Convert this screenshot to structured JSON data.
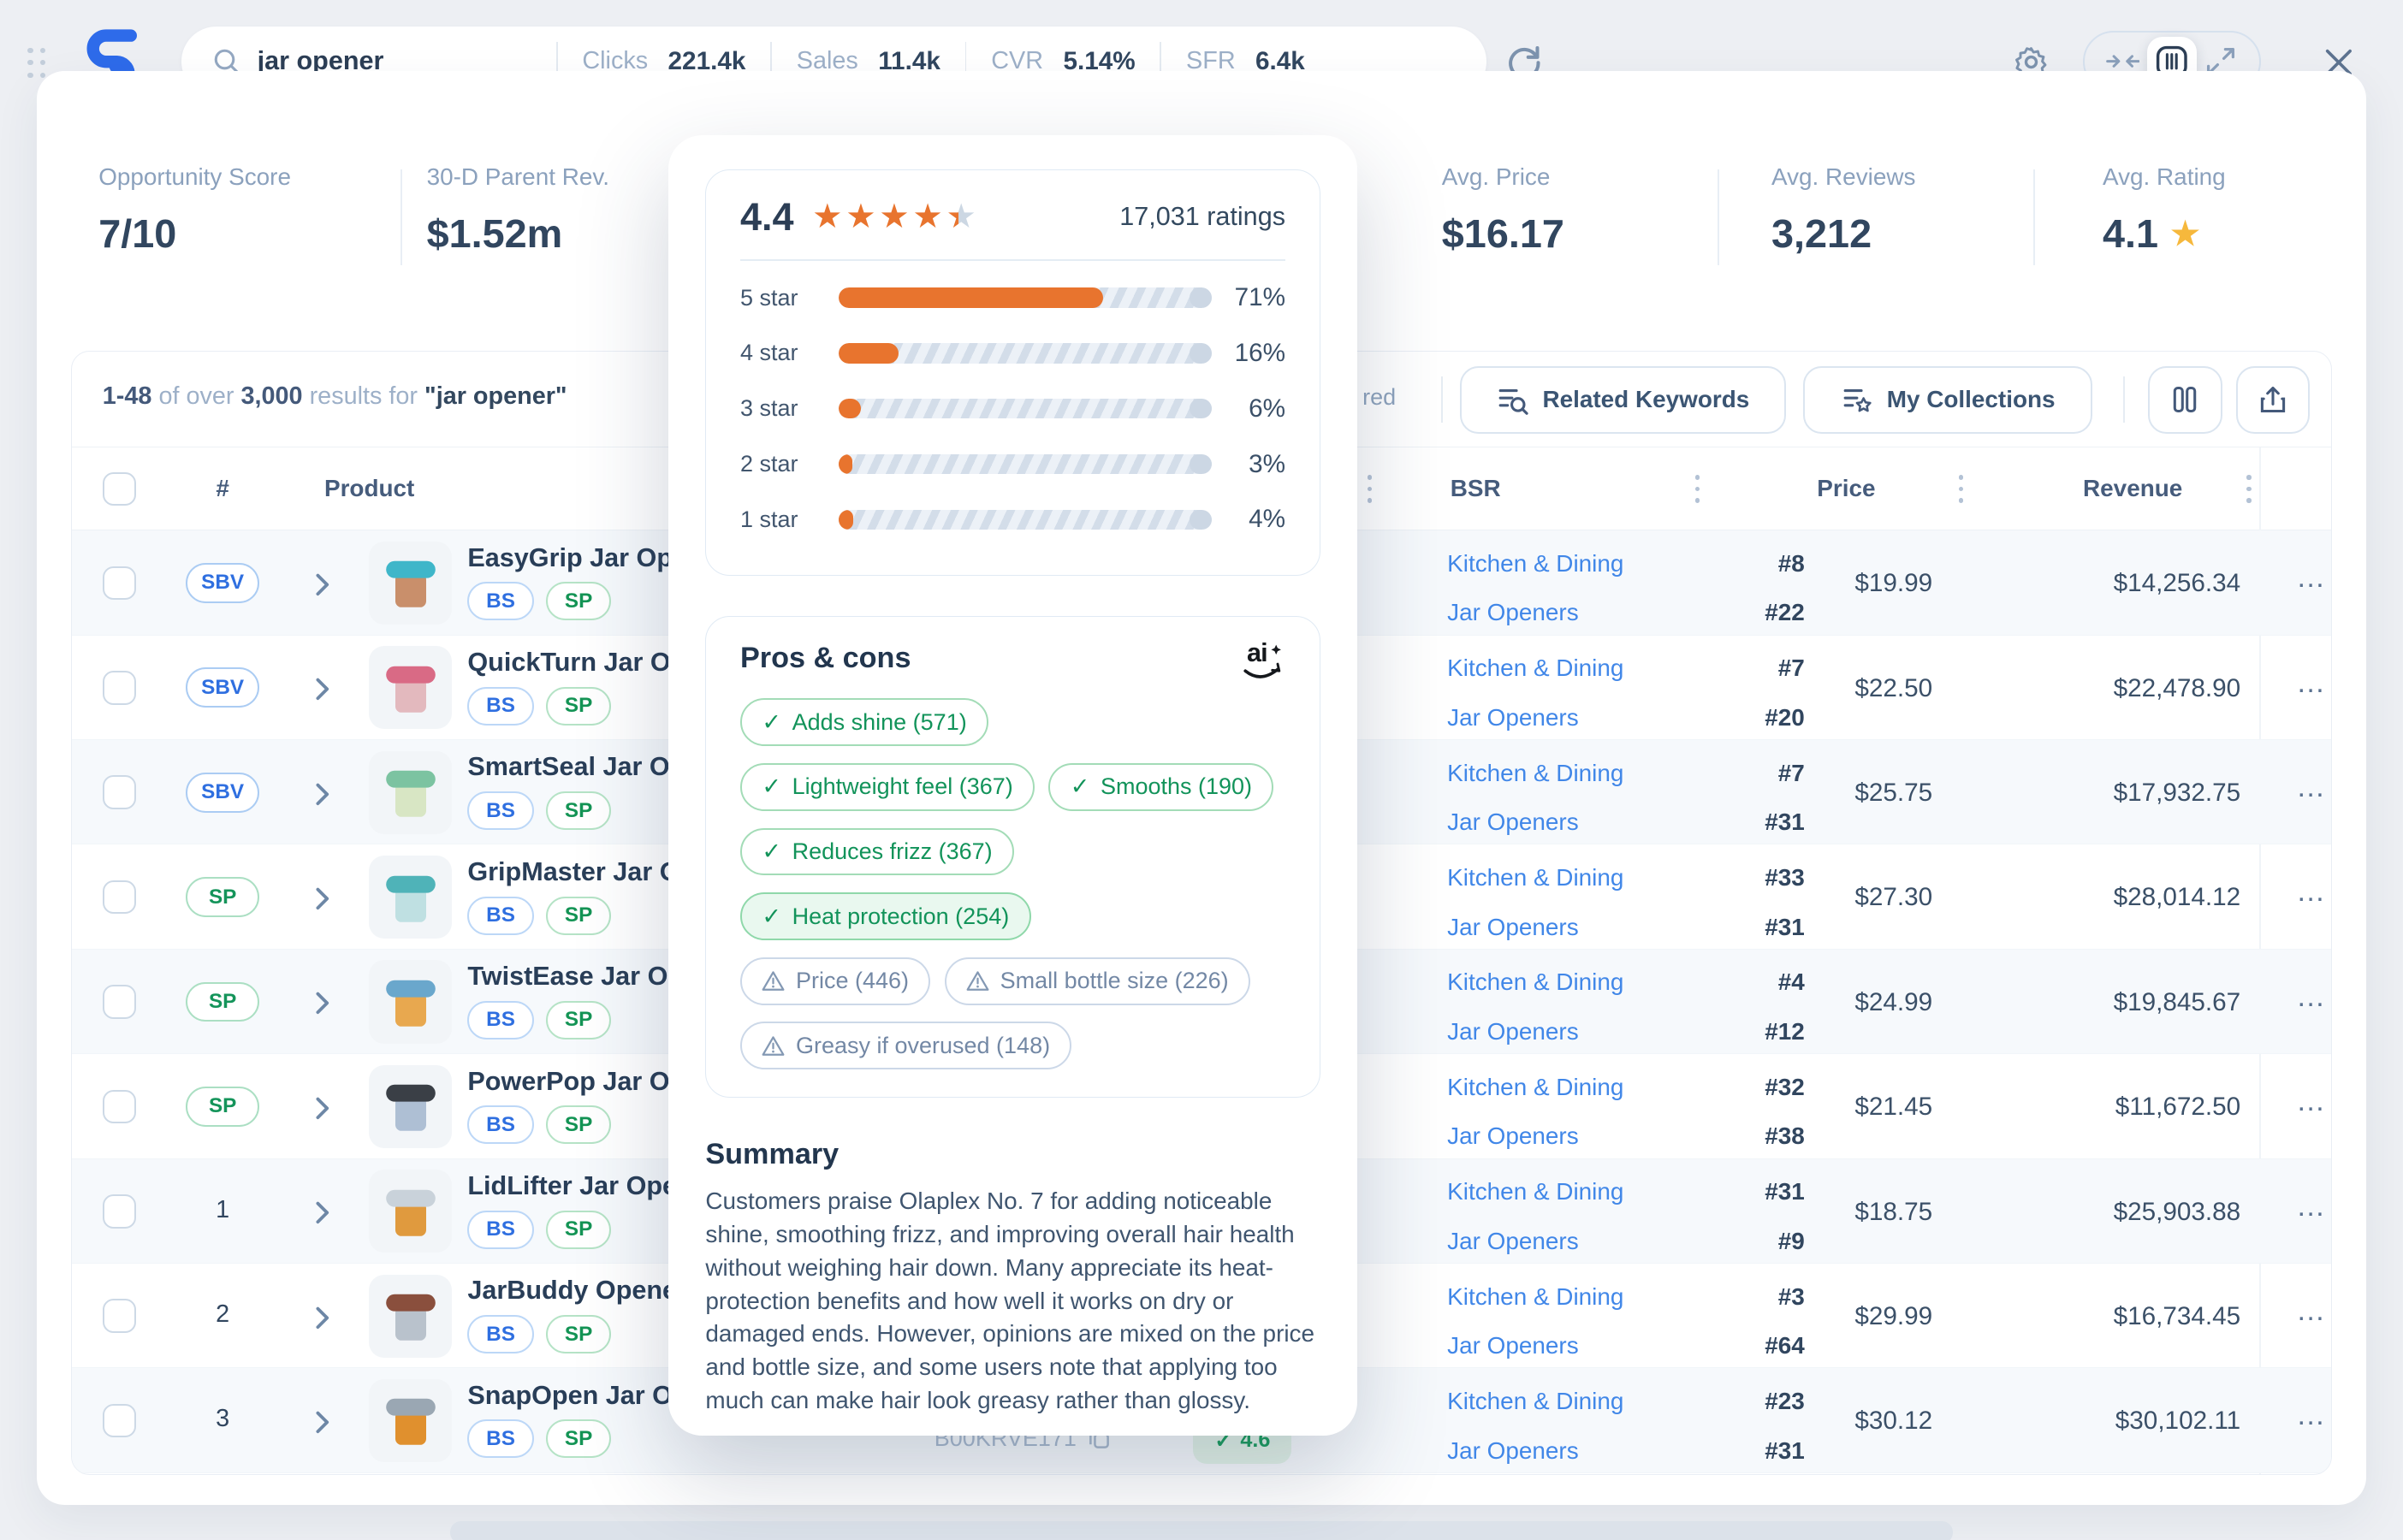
{
  "icons": {
    "star": "★",
    "check": "✓",
    "row_menu": "…"
  },
  "topbar": {
    "search": {
      "value": "jar opener"
    },
    "stats": [
      {
        "label": "Clicks",
        "value": "221.4k"
      },
      {
        "label": "Sales",
        "value": "11.4k"
      },
      {
        "label": "CVR",
        "value": "5.14%"
      },
      {
        "label": "SFR",
        "value": "6.4k"
      }
    ]
  },
  "kpis": [
    {
      "label": "Opportunity Score",
      "value": "7/10"
    },
    {
      "label": "30-D Parent Rev.",
      "value": "$1.52m"
    },
    {
      "label": "Avg. Price",
      "value": "$16.17"
    },
    {
      "label": "Avg. Reviews",
      "value": "3,212"
    },
    {
      "label": "Avg. Rating",
      "value": "4.1"
    }
  ],
  "results_header": {
    "range": "1-48",
    "of": "of over",
    "total": "3,000",
    "for": "results for",
    "query": "\"jar opener\"",
    "partial_label": "red",
    "related_keywords": "Related Keywords",
    "my_collections": "My Collections"
  },
  "table": {
    "headers": {
      "num": "#",
      "product": "Product",
      "bsr": "BSR",
      "price": "Price",
      "revenue": "Revenue"
    },
    "tag_bs": "BS",
    "tag_sp": "SP",
    "rows": [
      {
        "badge": "SBV",
        "title": "EasyGrip Jar Opener",
        "cat1": "Kitchen & Dining",
        "rank1": "#8",
        "cat2": "Jar Openers",
        "rank2": "#22",
        "price": "$19.99",
        "revenue": "$14,256.34",
        "thumb": {
          "lid": "#3fb6c9",
          "body": "#c98f6b"
        }
      },
      {
        "badge": "SBV",
        "title": "QuickTurn Jar Opener",
        "cat1": "Kitchen & Dining",
        "rank1": "#7",
        "cat2": "Jar Openers",
        "rank2": "#20",
        "price": "$22.50",
        "revenue": "$22,478.90",
        "thumb": {
          "lid": "#d96a85",
          "body": "#e3b9be"
        }
      },
      {
        "badge": "SBV",
        "title": "SmartSeal Jar Opener",
        "cat1": "Kitchen & Dining",
        "rank1": "#7",
        "cat2": "Jar Openers",
        "rank2": "#31",
        "price": "$25.75",
        "revenue": "$17,932.75",
        "thumb": {
          "lid": "#7cc3a1",
          "body": "#d8e6c4"
        }
      },
      {
        "badge": "SP",
        "title": "GripMaster Jar Opener",
        "cat1": "Kitchen & Dining",
        "rank1": "#33",
        "cat2": "Jar Openers",
        "rank2": "#31",
        "price": "$27.30",
        "revenue": "$28,014.12",
        "thumb": {
          "lid": "#4fb3b8",
          "body": "#bfe0e2"
        }
      },
      {
        "badge": "SP",
        "title": "TwistEase Jar Opener",
        "cat1": "Kitchen & Dining",
        "rank1": "#4",
        "cat2": "Jar Openers",
        "rank2": "#12",
        "price": "$24.99",
        "revenue": "$19,845.67",
        "thumb": {
          "lid": "#6aa7cc",
          "body": "#e8a84f"
        }
      },
      {
        "badge": "SP",
        "title": "PowerPop Jar Opener",
        "cat1": "Kitchen & Dining",
        "rank1": "#32",
        "cat2": "Jar Openers",
        "rank2": "#38",
        "price": "$21.45",
        "revenue": "$11,672.50",
        "thumb": {
          "lid": "#3a3f46",
          "body": "#aebfd4"
        }
      },
      {
        "badge": "1",
        "title": "LidLifter Jar Opener",
        "cat1": "Kitchen & Dining",
        "rank1": "#31",
        "cat2": "Jar Openers",
        "rank2": "#9",
        "price": "$18.75",
        "revenue": "$25,903.88",
        "thumb": {
          "lid": "#c9d2da",
          "body": "#e09a3e"
        }
      },
      {
        "badge": "2",
        "title": "JarBuddy Opener",
        "cat1": "Kitchen & Dining",
        "rank1": "#3",
        "cat2": "Jar Openers",
        "rank2": "#64",
        "price": "$29.99",
        "revenue": "$16,734.45",
        "thumb": {
          "lid": "#8a4f3d",
          "body": "#b9c2cc"
        }
      },
      {
        "badge": "3",
        "title": "SnapOpen Jar Opener",
        "cat1": "Kitchen & Dining",
        "rank1": "#23",
        "cat2": "Jar Openers",
        "rank2": "#31",
        "price": "$30.12",
        "revenue": "$30,102.11",
        "thumb": {
          "lid": "#9aa7b3",
          "body": "#e0902e"
        }
      }
    ],
    "row9_peek": {
      "text": "B00KRVE171",
      "badge": "4.6"
    }
  },
  "popup": {
    "score": "4.4",
    "ratings_count": "17,031 ratings",
    "bars": [
      {
        "label": "5 star",
        "pct": 71,
        "pct_label": "71%"
      },
      {
        "label": "4 star",
        "pct": 16,
        "pct_label": "16%"
      },
      {
        "label": "3 star",
        "pct": 6,
        "pct_label": "6%"
      },
      {
        "label": "2 star",
        "pct": 3,
        "pct_label": "3%"
      },
      {
        "label": "1 star",
        "pct": 4,
        "pct_label": "4%"
      }
    ],
    "pros_cons_title": "Pros & cons",
    "ai_label": "ai",
    "tags": [
      {
        "label": "Adds shine (571)",
        "type": "pro"
      },
      {
        "label": "Lightweight feel (367)",
        "type": "pro"
      },
      {
        "label": "Smooths (190)",
        "type": "pro"
      },
      {
        "label": "Reduces frizz (367)",
        "type": "pro"
      },
      {
        "label": "Heat protection (254)",
        "type": "pro",
        "highlight": true
      },
      {
        "label": "Price (446)",
        "type": "con"
      },
      {
        "label": "Small bottle size (226)",
        "type": "con"
      },
      {
        "label": "Greasy if overused (148)",
        "type": "con"
      }
    ],
    "summary_title": "Summary",
    "summary_text": "Customers praise Olaplex No. 7 for adding noticeable shine, smoothing frizz, and improving overall hair health without weighing hair down. Many appreciate its heat-protection benefits and how well it works on dry or damaged ends. However, opinions are mixed on the price and bottle size, and some users note that applying too much can make hair look greasy rather than glossy."
  },
  "colors": {
    "accent_orange": "#e8742e",
    "brand_blue": "#2e6bea",
    "link_blue": "#4187e8",
    "green": "#14945a",
    "star_yellow": "#f6b83c"
  }
}
